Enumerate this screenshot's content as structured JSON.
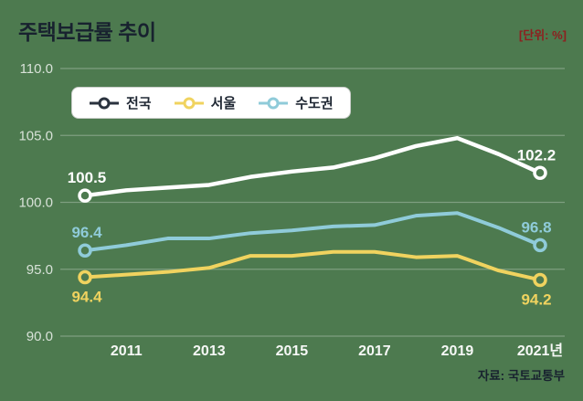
{
  "header": {
    "title": "주택보급률 추이",
    "unit_label": "[단위: %]"
  },
  "legend": {
    "items": [
      {
        "key": "nationwide",
        "label": "전국",
        "color": "#2a323e"
      },
      {
        "key": "seoul",
        "label": "서울",
        "color": "#f0d35f"
      },
      {
        "key": "metro",
        "label": "수도권",
        "color": "#8fcbd9"
      }
    ]
  },
  "footer": {
    "source": "자료: 국토교통부"
  },
  "colors": {
    "background": "#4d7a4f",
    "grid": "rgba(255,255,255,0.28)",
    "title": "#18222f",
    "unit": "#8e1f1f",
    "source": "#18222f",
    "y_tick": "rgba(255,255,255,0.78)",
    "x_tick": "rgba(255,255,255,0.95)"
  },
  "chart_data": {
    "type": "line",
    "title": "주택보급률 추이",
    "unit": "%",
    "source": "자료: 국토교통부",
    "x": [
      2010,
      2011,
      2012,
      2013,
      2014,
      2015,
      2016,
      2017,
      2018,
      2019,
      2020,
      2021
    ],
    "xticks": [
      2011,
      2013,
      2015,
      2017,
      2019,
      2021
    ],
    "xtick_labels": [
      "2011",
      "2013",
      "2015",
      "2017",
      "2019",
      "2021년"
    ],
    "ylim": [
      90,
      110
    ],
    "yticks": [
      90,
      95,
      100,
      105,
      110
    ],
    "ytick_labels": [
      "90.0",
      "95.0",
      "100.0",
      "105.0",
      "110.0"
    ],
    "grid": true,
    "legend_position": "top-left",
    "series": [
      {
        "key": "nationwide",
        "name": "전국",
        "color": "#ffffff",
        "label_color": "#ffffff",
        "line_width": 4.5,
        "values": [
          100.5,
          100.9,
          101.1,
          101.3,
          101.9,
          102.3,
          102.6,
          103.3,
          104.2,
          104.8,
          103.6,
          102.2
        ],
        "start_label": "100.5",
        "end_label": "102.2",
        "label_position": "above"
      },
      {
        "key": "seoul",
        "name": "서울",
        "color": "#f0d35f",
        "label_color": "#f0d35f",
        "line_width": 4,
        "values": [
          94.4,
          94.6,
          94.8,
          95.1,
          96.0,
          96.0,
          96.3,
          96.3,
          95.9,
          96.0,
          94.9,
          94.2
        ],
        "start_label": "94.4",
        "end_label": "94.2",
        "label_position": "below"
      },
      {
        "key": "metro",
        "name": "수도권",
        "color": "#8fcbd9",
        "label_color": "#8fcbd9",
        "line_width": 4,
        "values": [
          96.4,
          96.8,
          97.3,
          97.3,
          97.7,
          97.9,
          98.2,
          98.3,
          99.0,
          99.2,
          98.1,
          96.8
        ],
        "start_label": "96.4",
        "end_label": "96.8",
        "label_position": "above"
      }
    ]
  }
}
